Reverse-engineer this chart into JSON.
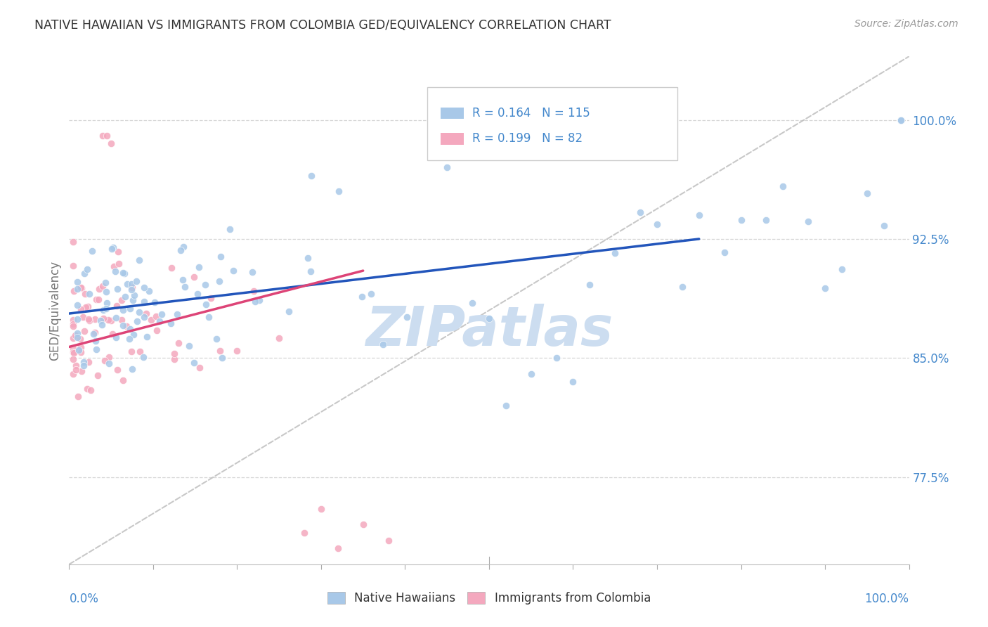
{
  "title": "NATIVE HAWAIIAN VS IMMIGRANTS FROM COLOMBIA GED/EQUIVALENCY CORRELATION CHART",
  "source": "Source: ZipAtlas.com",
  "ylabel": "GED/Equivalency",
  "ytick_labels": [
    "77.5%",
    "85.0%",
    "92.5%",
    "100.0%"
  ],
  "ytick_values": [
    0.775,
    0.85,
    0.925,
    1.0
  ],
  "legend_label1": "Native Hawaiians",
  "legend_label2": "Immigrants from Colombia",
  "R1": 0.164,
  "N1": 115,
  "R2": 0.199,
  "N2": 82,
  "blue_color": "#a8c8e8",
  "pink_color": "#f4a8be",
  "blue_line_color": "#2255bb",
  "pink_line_color": "#dd4477",
  "dashed_line_color": "#bbbbbb",
  "title_color": "#333333",
  "axis_label_color": "#4488cc",
  "watermark_color": "#ccddf0",
  "background_color": "#ffffff",
  "xlim": [
    0.0,
    1.0
  ],
  "ylim": [
    0.72,
    1.04
  ],
  "blue_line_x0": 0.0,
  "blue_line_y0": 0.878,
  "blue_line_x1": 0.75,
  "blue_line_y1": 0.925,
  "pink_line_x0": 0.0,
  "pink_line_y0": 0.857,
  "pink_line_x1": 0.35,
  "pink_line_y1": 0.905,
  "dash_line_x0": 0.0,
  "dash_line_y0": 0.72,
  "dash_line_x1": 1.0,
  "dash_line_y1": 1.04
}
